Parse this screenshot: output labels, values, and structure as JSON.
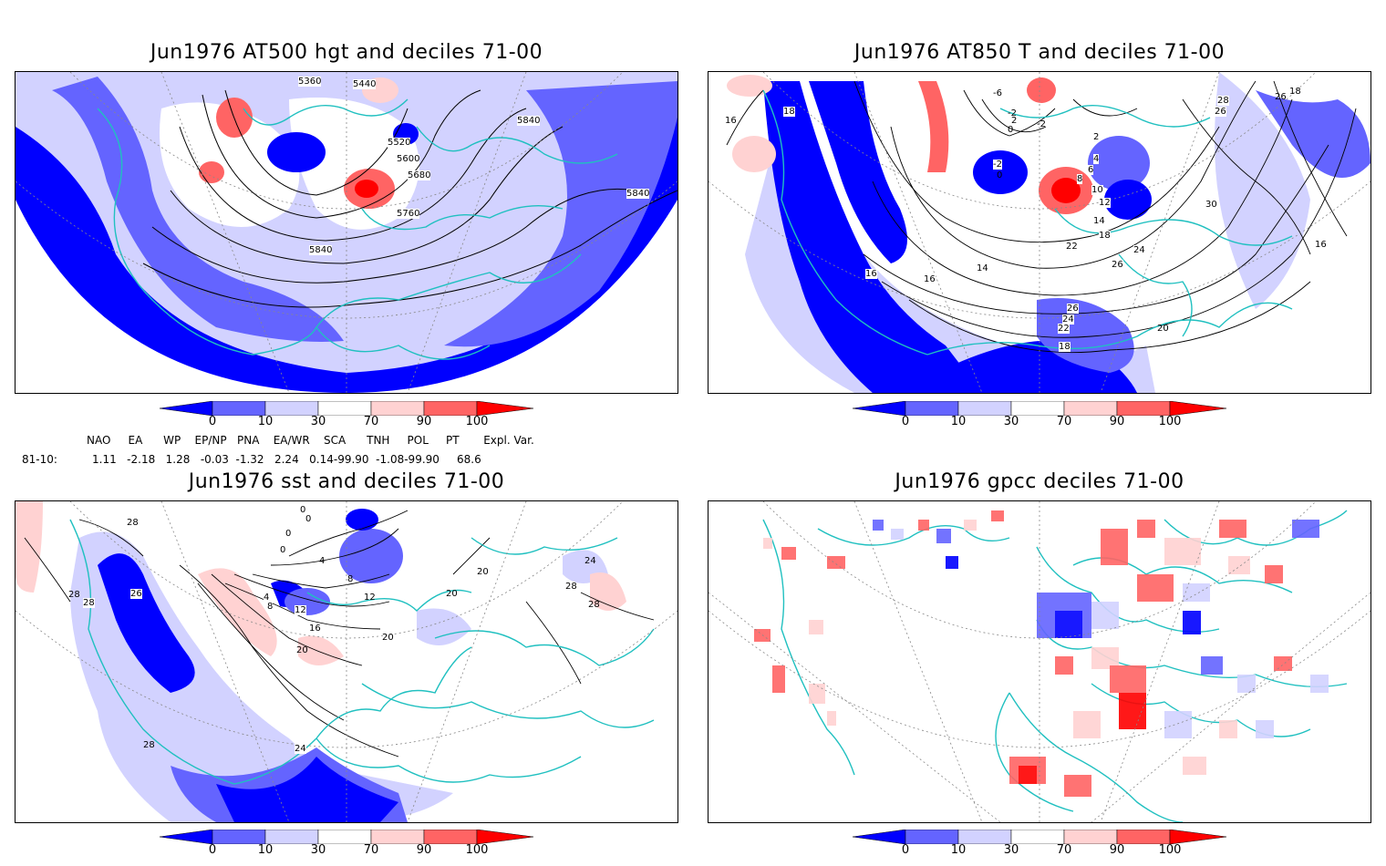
{
  "panels": [
    {
      "title": "Jun1976 AT500 hgt and deciles 71-00",
      "contour_labels": [
        "5360",
        "5440",
        "5520",
        "5600",
        "5680",
        "5760",
        "5840",
        "5840",
        "5840"
      ]
    },
    {
      "title": "Jun1976 AT850 T and deciles 71-00",
      "contour_labels": [
        "16",
        "18",
        "-6",
        "-2",
        "2",
        "0",
        "-2",
        "2",
        "4",
        "6",
        "8",
        "10",
        "12",
        "14",
        "18",
        "22",
        "24",
        "26",
        "28",
        "26",
        "30",
        "16",
        "18",
        "16",
        "16",
        "14",
        "26",
        "24",
        "22",
        "18",
        "20",
        "-2",
        "0",
        "26"
      ]
    },
    {
      "title": "Jun1976 sst and deciles 71-00",
      "contour_labels": [
        "28",
        "28",
        "28",
        "26",
        "0",
        "0",
        "0",
        "0",
        "4",
        "4",
        "8",
        "8",
        "12",
        "12",
        "16",
        "20",
        "20",
        "20",
        "20",
        "24",
        "28",
        "28",
        "24",
        "28"
      ]
    },
    {
      "title": "Jun1976 gpcc deciles 71-00",
      "contour_labels": []
    }
  ],
  "colorbar": {
    "tick_labels": [
      "0",
      "10",
      "30",
      "70",
      "90",
      "100"
    ],
    "colors": [
      "#0000ff",
      "#6464ff",
      "#d2d2ff",
      "#ffffff",
      "#ffd2d2",
      "#ff6464",
      "#ff0000"
    ]
  },
  "indices": {
    "header": "NAO     EA      WP    EP/NP   PNA    EA/WR    SCA      TNH     POL     PT       Expl. Var.",
    "row_label": "81-10:",
    "row_values": "1.11   -2.18   1.28   -0.03  -1.32   2.24   0.14-99.90  -1.08-99.90     68.6"
  }
}
